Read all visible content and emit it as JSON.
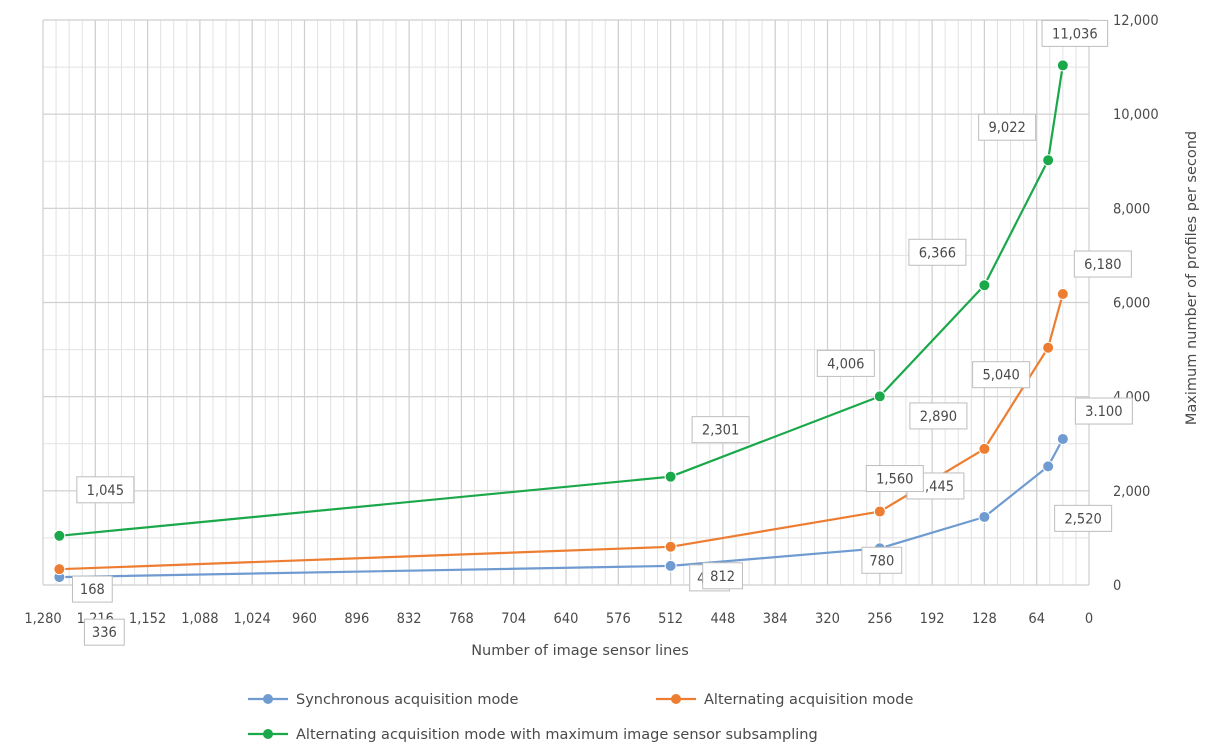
{
  "chart_data": {
    "type": "line",
    "xlabel": "Number of image sensor lines",
    "ylabel": "Maximum number of profiles per second",
    "xlim": [
      1280,
      0
    ],
    "x_reversed": true,
    "ylim": [
      0,
      12000
    ],
    "x_ticks": [
      1280,
      1216,
      1152,
      1088,
      1024,
      960,
      896,
      832,
      768,
      704,
      640,
      576,
      512,
      448,
      384,
      320,
      256,
      192,
      128,
      64,
      0
    ],
    "x_tick_labels": [
      "1,280",
      "1,216",
      "1,152",
      "1,088",
      "1,024",
      "960",
      "896",
      "832",
      "768",
      "704",
      "640",
      "576",
      "512",
      "448",
      "384",
      "320",
      "256",
      "192",
      "128",
      "64",
      "0"
    ],
    "y_ticks": [
      0,
      2000,
      4000,
      6000,
      8000,
      10000,
      12000
    ],
    "y_tick_labels": [
      "0",
      "2,000",
      "4,000",
      "6,000",
      "8,000",
      "10,000",
      "12,000"
    ],
    "y_axis_position": "right",
    "grid": true,
    "minor_grid": true,
    "legend_position": "bottom",
    "series": [
      {
        "name": "Synchronous acquisition mode",
        "color": "#6f9bd1",
        "x": [
          1260,
          512,
          256,
          128,
          50,
          32
        ],
        "y": [
          168,
          406,
          780,
          1445,
          2520,
          3100
        ],
        "labels": [
          "168",
          "406",
          "780",
          "1,445",
          "2,520",
          "3.100"
        ]
      },
      {
        "name": "Alternating acquisition mode",
        "color": "#ed7d31",
        "x": [
          1260,
          512,
          256,
          128,
          50,
          32
        ],
        "y": [
          336,
          812,
          1560,
          2890,
          5040,
          6180
        ],
        "labels": [
          "336",
          "812",
          "1,560",
          "2,890",
          "5,040",
          "6,180"
        ]
      },
      {
        "name": "Alternating acquisition mode with maximum image sensor subsampling",
        "color": "#1aa84a",
        "x": [
          1260,
          512,
          256,
          128,
          50,
          32
        ],
        "y": [
          1045,
          2301,
          4006,
          6366,
          9022,
          11036
        ],
        "labels": [
          "1,045",
          "2,301",
          "4,006",
          "6,366",
          "9,022",
          "11,036"
        ]
      }
    ]
  }
}
